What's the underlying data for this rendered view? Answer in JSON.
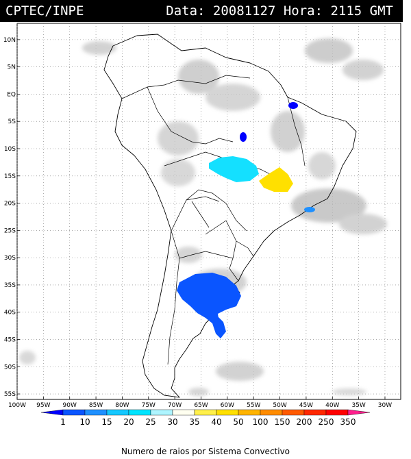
{
  "header": {
    "left": "CPTEC/INPE",
    "right": "Data: 20081127 Hora: 2115 GMT"
  },
  "axes": {
    "lat_labels": [
      "10N",
      "5N",
      "EQ",
      "5S",
      "10S",
      "15S",
      "20S",
      "25S",
      "30S",
      "35S",
      "40S",
      "45S",
      "50S",
      "55S"
    ],
    "lat_values": [
      10,
      5,
      0,
      -5,
      -10,
      -15,
      -20,
      -25,
      -30,
      -35,
      -40,
      -45,
      -50,
      -55
    ],
    "lon_labels": [
      "100W",
      "95W",
      "90W",
      "85W",
      "80W",
      "75W",
      "70W",
      "65W",
      "60W",
      "55W",
      "50W",
      "45W",
      "40W",
      "35W",
      "30W"
    ],
    "lon_values": [
      -100,
      -95,
      -90,
      -85,
      -80,
      -75,
      -70,
      -65,
      -60,
      -55,
      -50,
      -45,
      -40,
      -35,
      -30
    ],
    "lon_range": [
      -100,
      -27
    ],
    "lat_range": [
      -56,
      13
    ],
    "grid": "dotted"
  },
  "legend": {
    "caption": "Numero de raios por Sistema Convectivo",
    "labels": [
      "1",
      "10",
      "15",
      "20",
      "25",
      "30",
      "35",
      "40",
      "50",
      "100",
      "150",
      "200",
      "250",
      "350"
    ],
    "colors": [
      "#0000ff",
      "#0a55ff",
      "#1e90ff",
      "#14c8ff",
      "#00e5ff",
      "#aef5ff",
      "#fffff0",
      "#fff04a",
      "#ffe000",
      "#ffb400",
      "#ff8c00",
      "#ff5a00",
      "#ff2800",
      "#ff0000",
      "#ff1e8c"
    ]
  },
  "storms": [
    {
      "name": "argentina-large-system",
      "color": "#0a55ff",
      "lon": -62,
      "lat": -38
    },
    {
      "name": "central-brazil-cyan-system",
      "color": "#14e0ff",
      "lon": -59,
      "lat": -14
    },
    {
      "name": "goias-yellow-system",
      "color": "#ffe000",
      "lon": -49,
      "lat": -15.5
    },
    {
      "name": "northeast-blue-cell",
      "color": "#0000ff",
      "lon": -45,
      "lat": -3
    },
    {
      "name": "para-blue-cell",
      "color": "#0000ff",
      "lon": -56,
      "lat": -9
    },
    {
      "name": "southeast-blue-cell",
      "color": "#1e90ff",
      "lon": -43,
      "lat": -22
    },
    {
      "name": "patagonia-blue-cell",
      "color": "#0a55ff",
      "lon": -62,
      "lat": -44
    }
  ]
}
